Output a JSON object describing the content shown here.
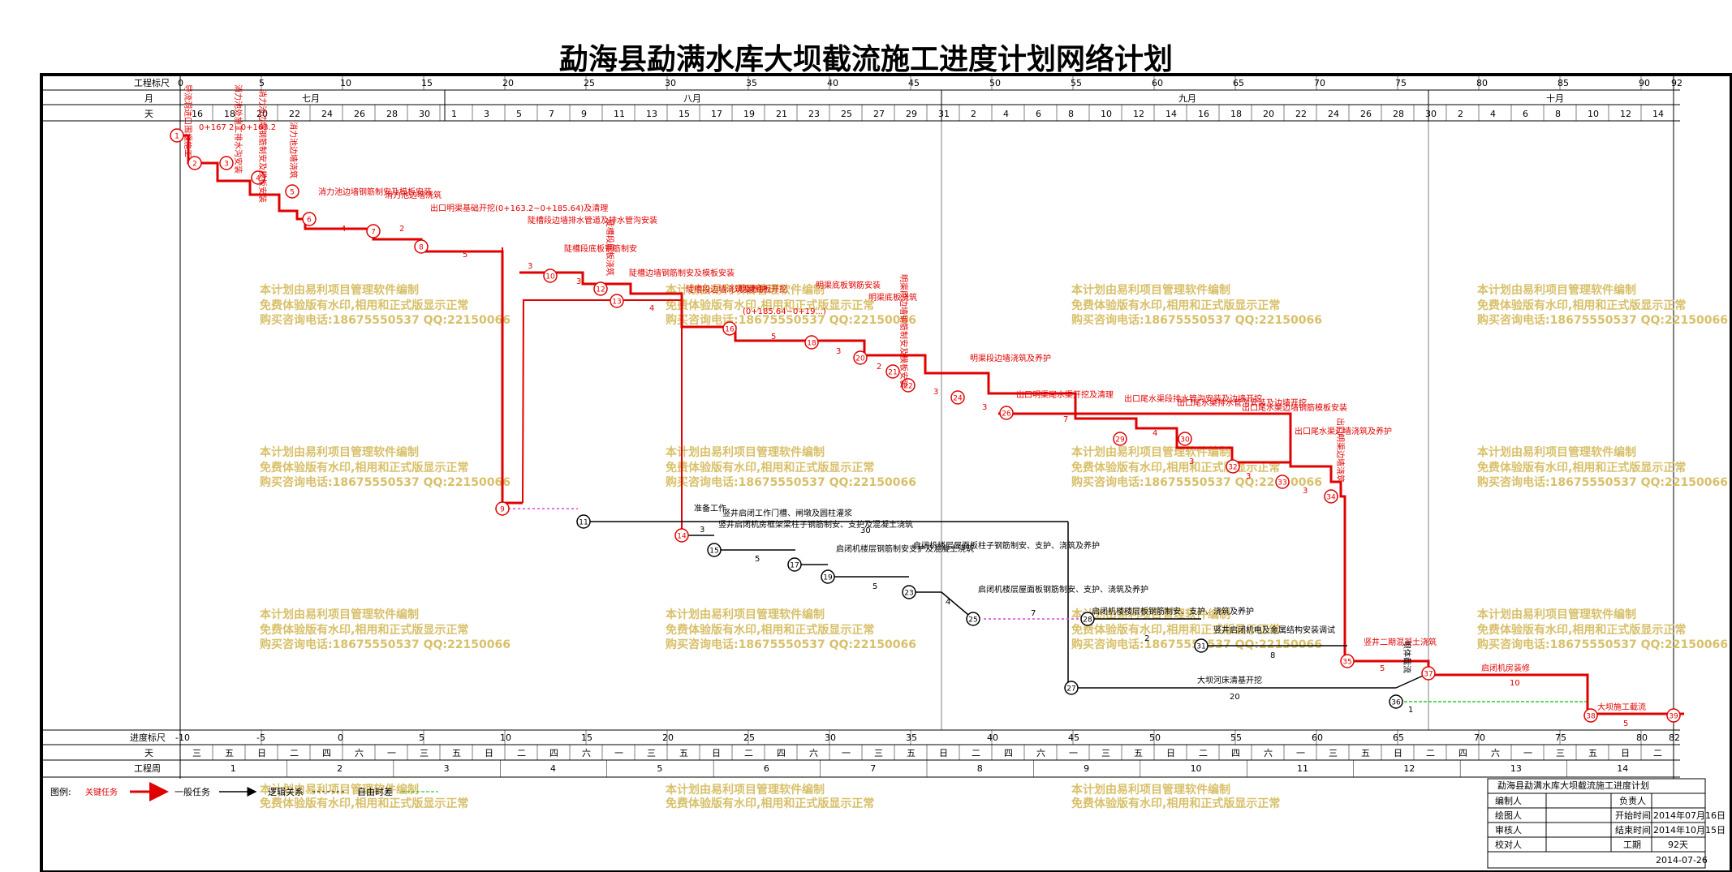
{
  "title": "勐海县勐满水库大坝截流施工进度计划网络计划",
  "header": {
    "scale_label": "工程标尺",
    "month_label": "月",
    "day_label": "天",
    "scale_ticks": [
      "0",
      "5",
      "10",
      "15",
      "20",
      "25",
      "30",
      "35",
      "40",
      "45",
      "50",
      "55",
      "60",
      "65",
      "70",
      "75",
      "80",
      "85",
      "90",
      "92"
    ],
    "months": [
      "七月",
      "八月",
      "九月",
      "十月"
    ],
    "days": [
      "16",
      "18",
      "20",
      "22",
      "24",
      "26",
      "28",
      "30",
      "1",
      "3",
      "5",
      "7",
      "9",
      "11",
      "13",
      "15",
      "17",
      "19",
      "21",
      "23",
      "25",
      "27",
      "29",
      "31",
      "2",
      "4",
      "6",
      "8",
      "10",
      "12",
      "14",
      "16",
      "18",
      "20",
      "22",
      "24",
      "26",
      "28",
      "30",
      "2",
      "4",
      "6",
      "8",
      "10",
      "12",
      "14"
    ]
  },
  "footer": {
    "progress_label": "进度标尺",
    "day_label": "天",
    "week_label": "工程周",
    "progress_ticks": [
      "-10",
      "-5",
      "0",
      "5",
      "10",
      "15",
      "20",
      "25",
      "30",
      "35",
      "40",
      "45",
      "50",
      "55",
      "60",
      "65",
      "70",
      "75",
      "80",
      "82"
    ],
    "weekdays": [
      "三",
      "五",
      "日",
      "二",
      "四",
      "六",
      "一",
      "三",
      "五",
      "日",
      "二",
      "四",
      "六",
      "一",
      "三",
      "五",
      "日",
      "二",
      "四",
      "六",
      "一",
      "三",
      "五",
      "日",
      "二",
      "四",
      "六",
      "一",
      "三",
      "五",
      "日",
      "二",
      "四",
      "六",
      "一",
      "三",
      "五",
      "日",
      "二",
      "四",
      "六",
      "一",
      "三",
      "五",
      "日",
      "二"
    ],
    "weeks": [
      "1",
      "2",
      "3",
      "4",
      "5",
      "6",
      "7",
      "8",
      "9",
      "10",
      "11",
      "12",
      "13",
      "14"
    ]
  },
  "legend": {
    "label": "图例:",
    "critical": "关键任务",
    "normal": "一般任务",
    "logic": "逻辑关系",
    "float": "自由时差"
  },
  "watermark": {
    "line1": "本计划由易利项目管理软件编制",
    "line2": "免费体验版有水印,相用和正式版显示正常",
    "line3": "购买咨询电话:18675550537 QQ:22150066"
  },
  "title_block": {
    "name": "勐海县勐满水库大坝截流施工进度计划",
    "rows": [
      {
        "k": "编制人",
        "v": "",
        "k2": "负责人",
        "v2": ""
      },
      {
        "k": "绘图人",
        "v": "",
        "k2": "开始时间",
        "v2": "2014年07月16日"
      },
      {
        "k": "审核人",
        "v": "",
        "k2": "结束时间",
        "v2": "2014年10月15日"
      },
      {
        "k": "校对人",
        "v": "",
        "k2": "工期",
        "v2": "92天"
      }
    ],
    "date": "2014-07-26"
  },
  "tasks": {
    "t1": "导流洞进口围堰施工",
    "t2": "0+167 2~0+163.2",
    "t3": "消力池处施工排水沟安装",
    "t4": "消力池边墙钢筋制安及模板安装",
    "t5": "消力池边墙浇筑",
    "t6": "消力池边墙钢筋制安及模板安装",
    "t6d": "4",
    "t7": "消力池边墙浇筑",
    "t7d": "2",
    "t8": "出口明渠基础开挖(0+163.2~0+185.64)及清理",
    "t8d": "5",
    "t9": "陡槽段边墙排水管道及排水管沟安装",
    "t9d": "3",
    "t10": "陡槽段底板钢筋制安",
    "t10d": "3",
    "t11": "陡槽段底板浇筑",
    "t12": "陡槽边墙钢筋制安及模板安装",
    "t12d": "4",
    "t13": "陡槽段边墙浇筑及养护",
    "t14": "明渠底板开挖",
    "t15": "(0+185.64~0+19...)",
    "t15d": "5",
    "t16": "明渠底板钢筋安装",
    "t16d": "3",
    "t17": "明渠底板浇筑",
    "t17d": "2",
    "t18": "明渠段边墙钢筋制安及模板安装",
    "t18d": "3",
    "t19": "明渠段边墙浇筑及养护",
    "t19d": "3",
    "t20": "出口明渠尾水渠开挖及清理",
    "t20d": "7",
    "t21": "出口尾水渠段排水管沟安装及边墙开挖",
    "t21d": "4",
    "t22": "出口尾水渠排水管沟安装及边墙开挖",
    "t22d": "3",
    "t23": "出口尾水渠边墙钢筋模板安装",
    "t23d": "3",
    "t24": "出口尾水渠边墙浇筑及养护",
    "t24d": "3",
    "t25": "出口明渠边墙浇筑",
    "t26": "竖井二期混凝土浇筑",
    "t26d": "5",
    "t27": "启闭机房装修",
    "t27d": "10",
    "t28": "大坝施工截流",
    "t28d": "5",
    "n1": "准备工作",
    "n1d": "3",
    "n2": "竖井启闭工作门槽、闸墩及圆柱灌浆",
    "n2d": "30",
    "n3": "竖井启闭机房框架梁柱子钢筋制安、支护及混凝土浇筑",
    "n3d": "5",
    "n4": "启闭机楼层钢筋制安支护及混凝土浇筑",
    "n4d": "5",
    "n5": "启闭机楼层屋面板柱子钢筋制安、支护、浇筑及养护",
    "n5d": "4",
    "n6": "启闭机楼层屋面板钢筋制安、支护、浇筑及养护",
    "n6d": "7",
    "n7": "启闭机楼楼层板钢筋制安、支护、浇筑及养护",
    "n7d": "2",
    "n8": "竖井启闭机电及金属结构安装调试",
    "n8d": "8",
    "n9": "大坝河床清基开挖",
    "n9d": "20",
    "n10": "坝体截流",
    "n10d": "1",
    "float_d": "7",
    "d2": "2",
    "d3": "3"
  }
}
